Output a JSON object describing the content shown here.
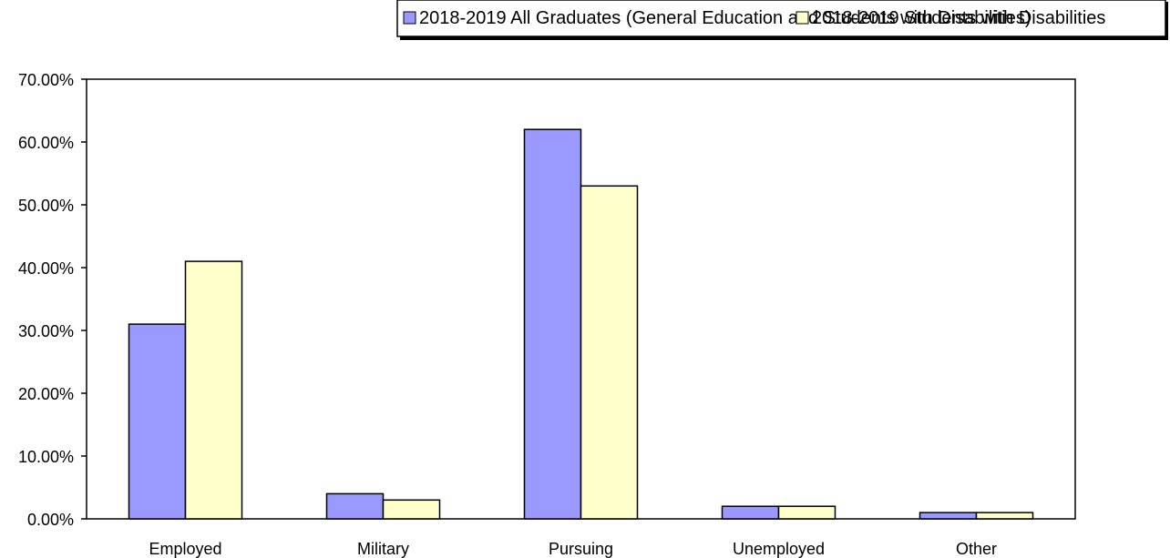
{
  "chart_data": {
    "type": "bar",
    "categories": [
      "Employed",
      "Military",
      "Pursuing",
      "Unemployed",
      "Other"
    ],
    "series": [
      {
        "name": "2018-2019 All Graduates (General Education and Students with Disabilities)",
        "color": "#9999ff",
        "values": [
          31,
          4,
          62,
          2,
          1
        ]
      },
      {
        "name": "2018-2019 Students with Disabilities",
        "color": "#ffffcc",
        "values": [
          41,
          3,
          53,
          2,
          1
        ]
      }
    ],
    "y_ticks": [
      "0.00%",
      "10.00%",
      "20.00%",
      "30.00%",
      "40.00%",
      "50.00%",
      "60.00%",
      "70.00%"
    ],
    "ylim": [
      0,
      70
    ],
    "legend_position": "top",
    "grid": false
  }
}
